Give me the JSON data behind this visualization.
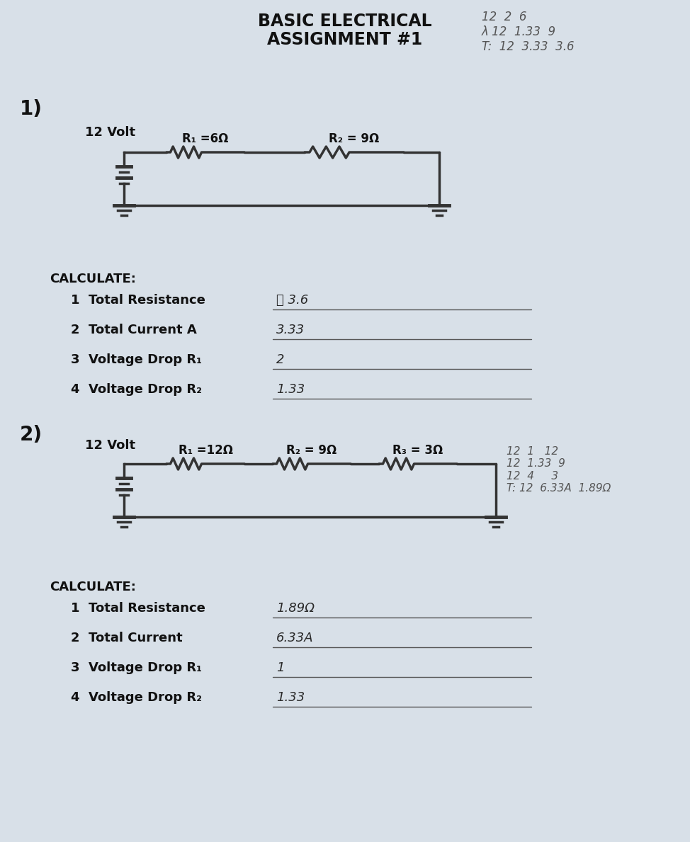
{
  "bg_color": "#d8e0e8",
  "title_line1": "BASIC ELECTRICAL",
  "title_line2": "ASSIGNMENT #1",
  "title_fontsize": 16,
  "title_bold": true,
  "section1_label": "1)",
  "section1_voltage": "12 Volt",
  "section1_r1": "R₁ =6Ω",
  "section1_r2": "R₂ = 9Ω",
  "calc1_title": "CALCULATE:",
  "calc1_items": [
    "1  Total Resistance",
    "2  Total Current A",
    "3  Voltage Drop R₁",
    "4  Voltage Drop R₂"
  ],
  "calc1_answers": [
    "΢ 3.6",
    "3.33",
    "2",
    "1.33"
  ],
  "section2_label": "2)",
  "section2_voltage": "12 Volt",
  "section2_r1": "R₁ =12Ω",
  "section2_r2": "R₂ = 9Ω",
  "section2_r3": "R₃ = 3Ω",
  "calc2_title": "CALCULATE:",
  "calc2_items": [
    "1  Total Resistance",
    "2  Total Current",
    "3  Voltage Drop R₁",
    "4  Voltage Drop R₂"
  ],
  "calc2_answers": [
    "1.89Ω",
    "6.33A",
    "1",
    "1.33"
  ],
  "note_top_right": "12  2  6\nλ 12  1.33  9\nT:  12  3.33  3.6",
  "note2_right": "12  1   12\n12  1.33  9\n12  4     3\nT: 12  6.33A  1.89Ω",
  "handwritten_color": "#222222",
  "answer_color": "#1a1a1a",
  "line_color": "#333333",
  "text_color": "#111111"
}
